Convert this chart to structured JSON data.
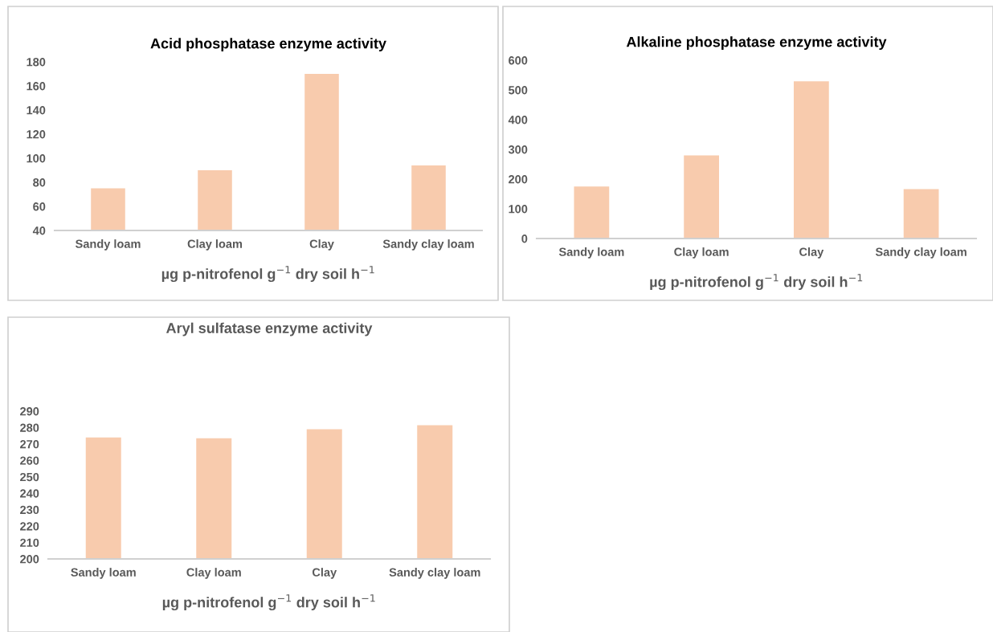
{
  "chart_data": [
    {
      "type": "bar",
      "title": "Acid phosphatase enzyme activity",
      "xlabel": "µg p-nitrofenol g$^{−1}$ dry soil h$^{−1}$",
      "categories": [
        "Sandy loam",
        "Clay loam",
        "Clay",
        "Sandy clay loam"
      ],
      "values": [
        75,
        90,
        170,
        94
      ],
      "color": "#f8cbad",
      "ylim": [
        40,
        180
      ],
      "yticks": [
        40,
        60,
        80,
        100,
        120,
        140,
        160,
        180
      ],
      "grid": false
    },
    {
      "type": "bar",
      "title": "Alkaline phosphatase enzyme activity",
      "xlabel": "µg p-nitrofenol g$^{−1}$ dry soil h$^{−1}$",
      "categories": [
        "Sandy loam",
        "Clay loam",
        "Clay",
        "Sandy clay loam"
      ],
      "values": [
        175,
        280,
        529,
        166
      ],
      "color": "#f8cbad",
      "ylim": [
        0,
        600
      ],
      "yticks": [
        0,
        100,
        200,
        300,
        400,
        500,
        600
      ],
      "grid": false
    },
    {
      "type": "bar",
      "title": "Aryl sulfatase enzyme activity",
      "xlabel": "µg p-nitrofenol g$^{−1}$ dry soil h$^{−1}$",
      "categories": [
        "Sandy loam",
        "Clay loam",
        "Clay",
        "Sandy clay loam"
      ],
      "values": [
        274,
        273.5,
        279,
        281.5
      ],
      "color": "#f8cbad",
      "ylim": [
        200,
        290
      ],
      "yticks": [
        200,
        210,
        220,
        230,
        240,
        250,
        260,
        270,
        280,
        290
      ],
      "grid": false
    }
  ]
}
